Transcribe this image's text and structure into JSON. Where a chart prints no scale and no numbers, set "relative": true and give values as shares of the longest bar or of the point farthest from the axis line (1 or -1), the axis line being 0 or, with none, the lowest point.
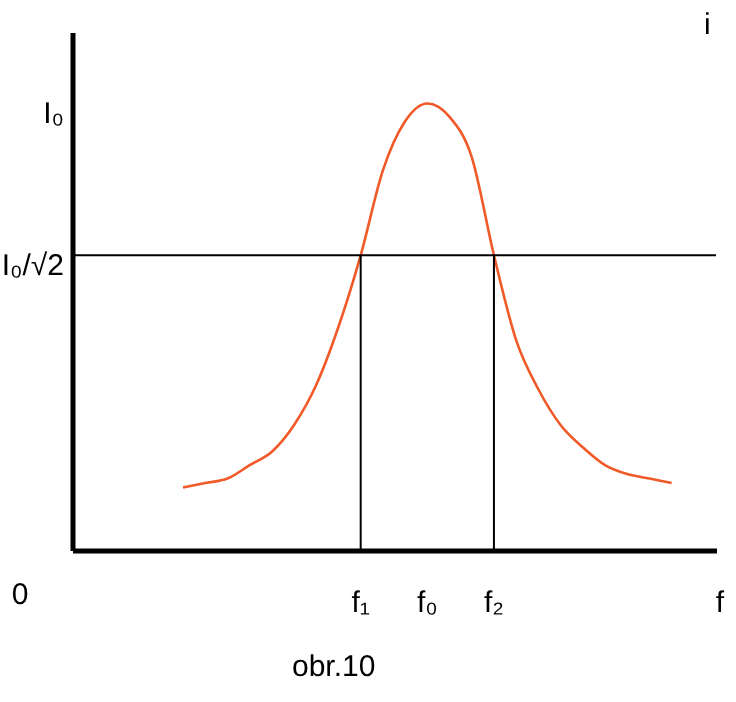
{
  "chart_data": {
    "type": "line",
    "relative": true,
    "xlabel": "f",
    "ylabel": "i",
    "annotations": [
      "I₀",
      "I₀/√2",
      "0",
      "f₁",
      "f₀",
      "f₂",
      "obr.10"
    ],
    "categories": [
      null,
      null,
      null,
      null,
      null,
      null,
      null,
      null,
      null,
      null,
      null,
      null,
      null,
      null,
      null,
      null,
      null,
      null,
      null,
      null,
      null,
      null,
      null,
      null,
      null,
      null,
      null,
      null,
      null,
      null
    ],
    "series": [
      {
        "color": "#f05a28",
        "values": [
          null,
          null,
          null,
          null,
          null,
          0.14,
          0.15,
          0.16,
          0.19,
          0.22,
          0.28,
          0.37,
          0.5,
          0.66,
          0.85,
          0.96,
          1.0,
          0.97,
          0.88,
          0.66,
          0.47,
          0.36,
          0.28,
          0.23,
          0.19,
          0.17,
          0.16,
          0.15,
          null,
          null
        ]
      }
    ],
    "ref_lines": [
      {
        "axis": "y",
        "value": 0.66,
        "color": "#000000"
      }
    ],
    "grid": false,
    "line_style": "solid"
  }
}
